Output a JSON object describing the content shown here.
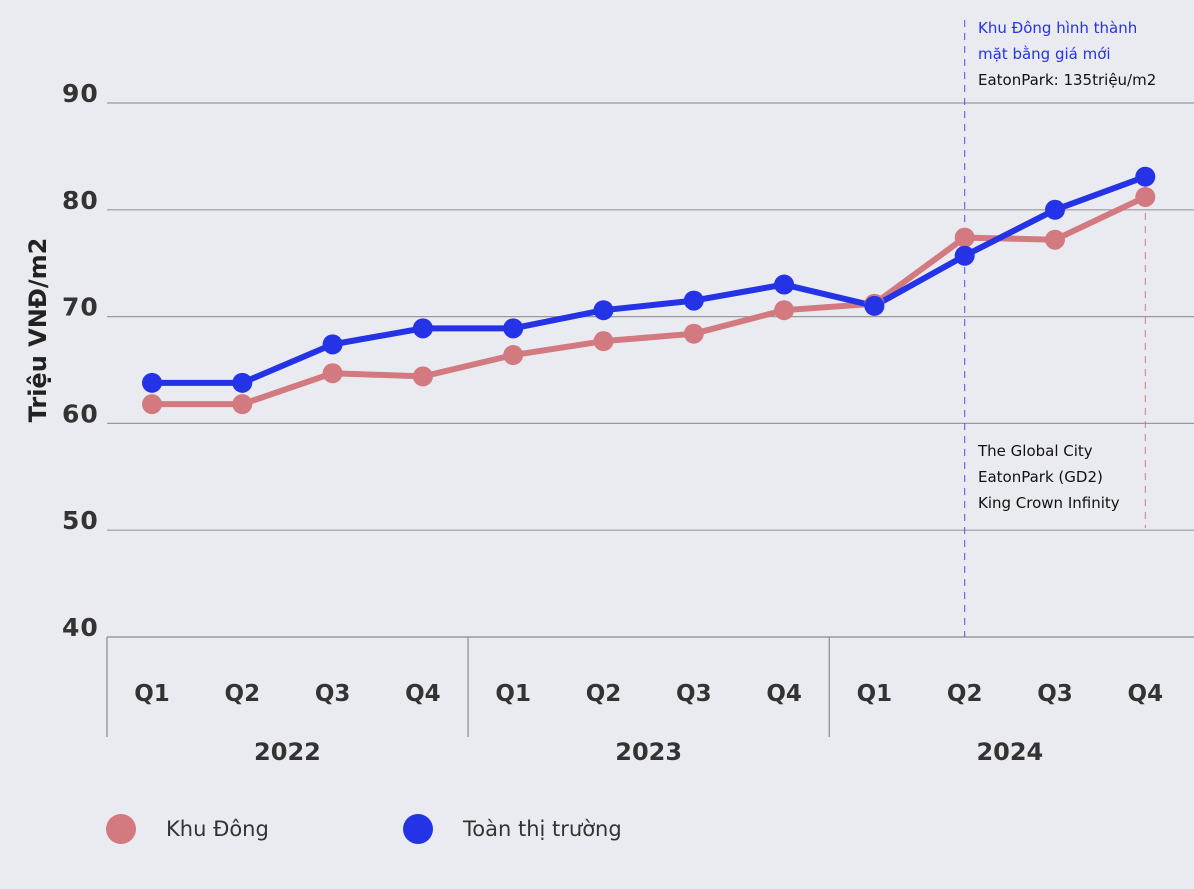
{
  "chart_data": {
    "type": "line",
    "ylabel": "Triệu VNĐ/m2",
    "ylim": [
      40,
      90
    ],
    "yticks": [
      "90",
      "80",
      "70",
      "60",
      "50",
      "40"
    ],
    "categories": [
      "Q1",
      "Q2",
      "Q3",
      "Q4",
      "Q1",
      "Q2",
      "Q3",
      "Q4",
      "Q1",
      "Q2",
      "Q3",
      "Q4"
    ],
    "groups": [
      {
        "label": "2022",
        "count": 4
      },
      {
        "label": "2023",
        "count": 4
      },
      {
        "label": "2024",
        "count": 4
      }
    ],
    "series": [
      {
        "name": "Khu Đông",
        "color": "#d27a80",
        "values": [
          61.8,
          61.8,
          64.7,
          64.4,
          66.4,
          67.7,
          68.4,
          70.6,
          71.2,
          77.4,
          77.2,
          81.2
        ]
      },
      {
        "name": "Toàn thị trường",
        "color": "#2433e6",
        "values": [
          63.8,
          63.8,
          67.4,
          68.9,
          68.9,
          70.6,
          71.5,
          73.0,
          71.0,
          75.7,
          80.0,
          83.1
        ]
      }
    ],
    "annotations": {
      "top": {
        "line1": "Khu Đông hình thành",
        "line2": "mặt bằng giá mới",
        "line3": "EatonPark: 135triệu/m2"
      },
      "bottom": {
        "line1": "The Global City",
        "line2": "EatonPark (GD2)",
        "line3": "King Crown Infinity"
      }
    },
    "grid": true,
    "legend_position": "bottom-left"
  }
}
